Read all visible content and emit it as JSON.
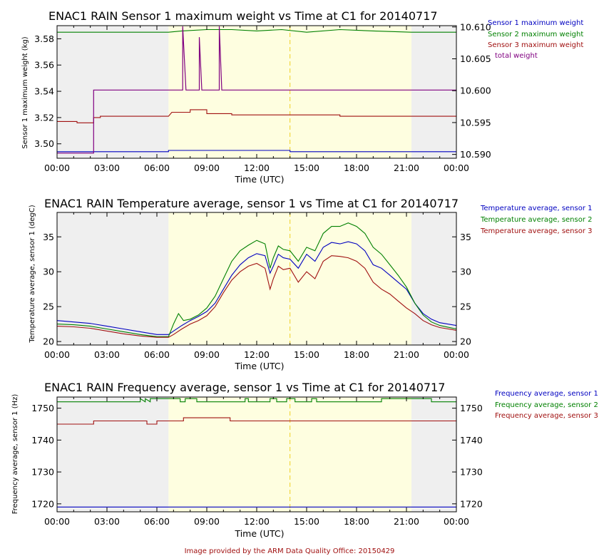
{
  "footer": "Image provided by the ARM Data Quality Office: 20150429",
  "colors": {
    "blue": "#0000c0",
    "green": "#008000",
    "red": "#a01010",
    "purple": "#800080",
    "night": "#efefef",
    "day": "#fefee0",
    "dash": "#f0d020"
  },
  "chart_data": [
    {
      "type": "line",
      "title": "ENAC1 RAIN Sensor 1 maximum weight vs Time at C1 for 20140717",
      "xlabel": "Time (UTC)",
      "ylabel": "Sensor 1 maximum weight (kg)",
      "xticks": [
        "00:00",
        "03:00",
        "06:00",
        "09:00",
        "12:00",
        "15:00",
        "18:00",
        "21:00",
        "00:00"
      ],
      "xlim": [
        0,
        24
      ],
      "ylim": [
        3.489,
        3.59
      ],
      "yticks": [
        3.5,
        3.52,
        3.54,
        3.56,
        3.58
      ],
      "ytick_labels": [
        "3.50",
        "3.52",
        "3.54",
        "3.56",
        "3.58"
      ],
      "y2lim": [
        10.5894,
        10.6102
      ],
      "y2ticks": [
        10.59,
        10.595,
        10.6,
        10.605,
        10.61
      ],
      "y2tick_labels": [
        "10.590",
        "10.595",
        "10.600",
        "10.605",
        "10.610"
      ],
      "day_span": [
        6.7,
        21.3
      ],
      "dashed_x": 14.0,
      "legend": [
        "Sensor 1 maximum weight",
        "Sensor 2 maximum weight",
        "Sensor 3 maximum weight",
        "total weight"
      ],
      "series": [
        {
          "name": "Sensor 1 maximum weight",
          "color": "blue",
          "axis": 1,
          "x": [
            0,
            6.7,
            6.7,
            14.0,
            14.0,
            24
          ],
          "y": [
            3.494,
            3.494,
            3.495,
            3.495,
            3.494,
            3.494
          ]
        },
        {
          "name": "Sensor 2 maximum weight",
          "color": "green",
          "axis": 1,
          "x": [
            0,
            6.7,
            7.5,
            9.0,
            10.5,
            12.0,
            13.5,
            15.0,
            17.0,
            19.0,
            21.3,
            24
          ],
          "y": [
            3.585,
            3.585,
            3.586,
            3.587,
            3.587,
            3.586,
            3.587,
            3.585,
            3.587,
            3.586,
            3.585,
            3.585
          ]
        },
        {
          "name": "Sensor 3 maximum weight",
          "color": "red",
          "axis": 1,
          "x": [
            0,
            1.2,
            1.2,
            2.2,
            2.2,
            2.6,
            2.6,
            6.7,
            6.9,
            8.0,
            8.0,
            9.0,
            9.0,
            10.5,
            10.5,
            17.0,
            17.0,
            21.3,
            21.3,
            24
          ],
          "y": [
            3.517,
            3.517,
            3.516,
            3.516,
            3.52,
            3.52,
            3.521,
            3.521,
            3.524,
            3.524,
            3.526,
            3.526,
            3.523,
            3.523,
            3.522,
            3.522,
            3.521,
            3.521,
            3.521,
            3.521
          ]
        },
        {
          "name": "total weight",
          "color": "purple",
          "axis": 2,
          "x": [
            0,
            2.2,
            2.2,
            7.55,
            7.55,
            7.75,
            7.75,
            8.55,
            8.55,
            8.7,
            8.7,
            9.75,
            9.75,
            9.9,
            9.9,
            24
          ],
          "y": [
            10.5902,
            10.5902,
            10.6001,
            10.6001,
            10.6101,
            10.6001,
            10.6001,
            10.6001,
            10.6084,
            10.6001,
            10.6001,
            10.6001,
            10.6101,
            10.6001,
            10.6001,
            10.6001
          ]
        }
      ]
    },
    {
      "type": "line",
      "title": "ENAC1 RAIN Temperature average, sensor 1 vs Time at C1 for 20140717",
      "xlabel": "Time (UTC)",
      "ylabel": "Temperature average, sensor 1 (degC)",
      "xticks": [
        "00:00",
        "03:00",
        "06:00",
        "09:00",
        "12:00",
        "15:00",
        "18:00",
        "21:00",
        "00:00"
      ],
      "xlim": [
        0,
        24
      ],
      "ylim": [
        19.5,
        38.5
      ],
      "yticks": [
        20,
        25,
        30,
        35
      ],
      "ytick_labels": [
        "20",
        "25",
        "30",
        "35"
      ],
      "y2lim": [
        19.5,
        38.5
      ],
      "y2ticks": [
        20,
        25,
        30,
        35
      ],
      "y2tick_labels": [
        "20",
        "25",
        "30",
        "35"
      ],
      "day_span": [
        6.7,
        21.3
      ],
      "dashed_x": 14.0,
      "legend": [
        "Temperature average, sensor 1",
        "Temperature average, sensor 2",
        "Temperature average, sensor 3"
      ],
      "series": [
        {
          "name": "Temperature average, sensor 1",
          "color": "blue",
          "axis": 1,
          "x": [
            0,
            1,
            2,
            3,
            4,
            5,
            6,
            6.7,
            7,
            7.5,
            8,
            8.5,
            9,
            9.5,
            10,
            10.5,
            11,
            11.5,
            12,
            12.5,
            12.8,
            13,
            13.3,
            13.6,
            14,
            14.5,
            15,
            15.5,
            16,
            16.5,
            17,
            17.5,
            18,
            18.5,
            19,
            19.5,
            20,
            20.5,
            21,
            21.5,
            22,
            22.5,
            23,
            24
          ],
          "y": [
            23.0,
            22.8,
            22.6,
            22.2,
            21.8,
            21.4,
            21.0,
            21.0,
            21.5,
            22.3,
            23.0,
            23.6,
            24.3,
            25.5,
            27.5,
            29.5,
            31.0,
            32.0,
            32.6,
            32.3,
            29.8,
            30.8,
            32.5,
            32.0,
            31.8,
            30.5,
            32.5,
            31.5,
            33.5,
            34.2,
            34.0,
            34.3,
            34.0,
            33.0,
            31.0,
            30.5,
            29.5,
            28.5,
            27.5,
            25.5,
            24.0,
            23.2,
            22.7,
            22.3
          ]
        },
        {
          "name": "Temperature average, sensor 2",
          "color": "green",
          "axis": 1,
          "x": [
            0,
            1,
            2,
            3,
            4,
            5,
            6,
            6.7,
            7,
            7.3,
            7.6,
            8,
            8.5,
            9,
            9.5,
            10,
            10.5,
            11,
            11.5,
            12,
            12.5,
            12.8,
            13,
            13.3,
            13.6,
            14,
            14.5,
            15,
            15.5,
            16,
            16.5,
            17,
            17.5,
            18,
            18.5,
            19,
            19.5,
            20,
            20.5,
            21,
            21.5,
            22,
            22.5,
            23,
            24
          ],
          "y": [
            22.5,
            22.4,
            22.2,
            21.8,
            21.4,
            21.0,
            20.7,
            20.7,
            22.5,
            24.0,
            23.0,
            23.2,
            23.8,
            24.8,
            26.5,
            29.0,
            31.5,
            33.0,
            33.8,
            34.5,
            34.0,
            30.5,
            32.0,
            33.7,
            33.2,
            33.0,
            31.5,
            33.5,
            33.0,
            35.5,
            36.5,
            36.5,
            37.0,
            36.5,
            35.5,
            33.5,
            32.5,
            31.0,
            29.5,
            27.8,
            25.5,
            23.8,
            22.8,
            22.3,
            21.8
          ]
        },
        {
          "name": "Temperature average, sensor 3",
          "color": "red",
          "axis": 1,
          "x": [
            0,
            1,
            2,
            3,
            4,
            5,
            6,
            6.7,
            7,
            7.5,
            8,
            8.5,
            9,
            9.5,
            10,
            10.5,
            11,
            11.5,
            12,
            12.5,
            12.8,
            13,
            13.3,
            13.6,
            14,
            14.5,
            15,
            15.5,
            16,
            16.5,
            17,
            17.5,
            18,
            18.5,
            19,
            19.5,
            20,
            20.5,
            21,
            21.5,
            22,
            22.5,
            23,
            24
          ],
          "y": [
            22.2,
            22.1,
            21.9,
            21.5,
            21.1,
            20.8,
            20.6,
            20.6,
            21.0,
            21.8,
            22.5,
            23.0,
            23.7,
            25.0,
            27.0,
            28.8,
            30.0,
            30.8,
            31.2,
            30.5,
            27.5,
            29.0,
            30.8,
            30.3,
            30.5,
            28.5,
            30.0,
            29.0,
            31.5,
            32.3,
            32.2,
            32.0,
            31.5,
            30.5,
            28.5,
            27.5,
            26.8,
            25.8,
            24.8,
            24.0,
            23.0,
            22.4,
            22.0,
            21.6
          ]
        }
      ]
    },
    {
      "type": "line",
      "title": "ENAC1 RAIN Frequency average, sensor 1 vs Time at C1 for 20140717",
      "xlabel": "Time (UTC)",
      "ylabel": "Frequency average, sensor 1 (Hz)",
      "xticks": [
        "00:00",
        "03:00",
        "06:00",
        "09:00",
        "12:00",
        "15:00",
        "18:00",
        "21:00",
        "00:00"
      ],
      "xlim": [
        0,
        24
      ],
      "ylim": [
        1717.5,
        1753.5
      ],
      "yticks": [
        1720,
        1730,
        1740,
        1750
      ],
      "ytick_labels": [
        "1720",
        "1730",
        "1740",
        "1750"
      ],
      "y2lim": [
        1717.5,
        1753.5
      ],
      "y2ticks": [
        1720,
        1730,
        1740,
        1750
      ],
      "y2tick_labels": [
        "1720",
        "1730",
        "1740",
        "1750"
      ],
      "day_span": [
        6.7,
        21.3
      ],
      "dashed_x": 14.0,
      "legend": [
        "Frequency average, sensor 1",
        "Frequency average, sensor 2",
        "Frequency average, sensor 3"
      ],
      "series": [
        {
          "name": "Frequency average, sensor 1",
          "color": "blue",
          "axis": 1,
          "x": [
            0,
            24
          ],
          "y": [
            1719,
            1719
          ]
        },
        {
          "name": "Frequency average, sensor 2",
          "color": "green",
          "axis": 1,
          "x": [
            0,
            5.0,
            5.0,
            5.3,
            5.3,
            5.6,
            5.6,
            7.4,
            7.4,
            7.7,
            7.7,
            8.4,
            8.4,
            11.3,
            11.3,
            11.5,
            11.5,
            12.8,
            12.8,
            13.2,
            13.2,
            13.8,
            13.8,
            14.3,
            14.3,
            15.3,
            15.3,
            15.6,
            15.6,
            19.5,
            19.5,
            22.5,
            22.5,
            24
          ],
          "y": [
            1752,
            1752,
            1753,
            1752,
            1753,
            1752,
            1753,
            1753,
            1752,
            1752,
            1753,
            1753,
            1752,
            1752,
            1753,
            1753,
            1752,
            1752,
            1753,
            1753,
            1752,
            1752,
            1753,
            1753,
            1752,
            1752,
            1753,
            1753,
            1752,
            1752,
            1753,
            1753,
            1752,
            1752
          ]
        },
        {
          "name": "Frequency average, sensor 3",
          "color": "red",
          "axis": 1,
          "x": [
            0,
            2.2,
            2.2,
            5.4,
            5.4,
            6.0,
            6.0,
            7.6,
            7.6,
            10.4,
            10.4,
            24
          ],
          "y": [
            1745,
            1745,
            1746,
            1746,
            1745,
            1745,
            1746,
            1746,
            1747,
            1747,
            1746,
            1746
          ]
        }
      ]
    }
  ]
}
